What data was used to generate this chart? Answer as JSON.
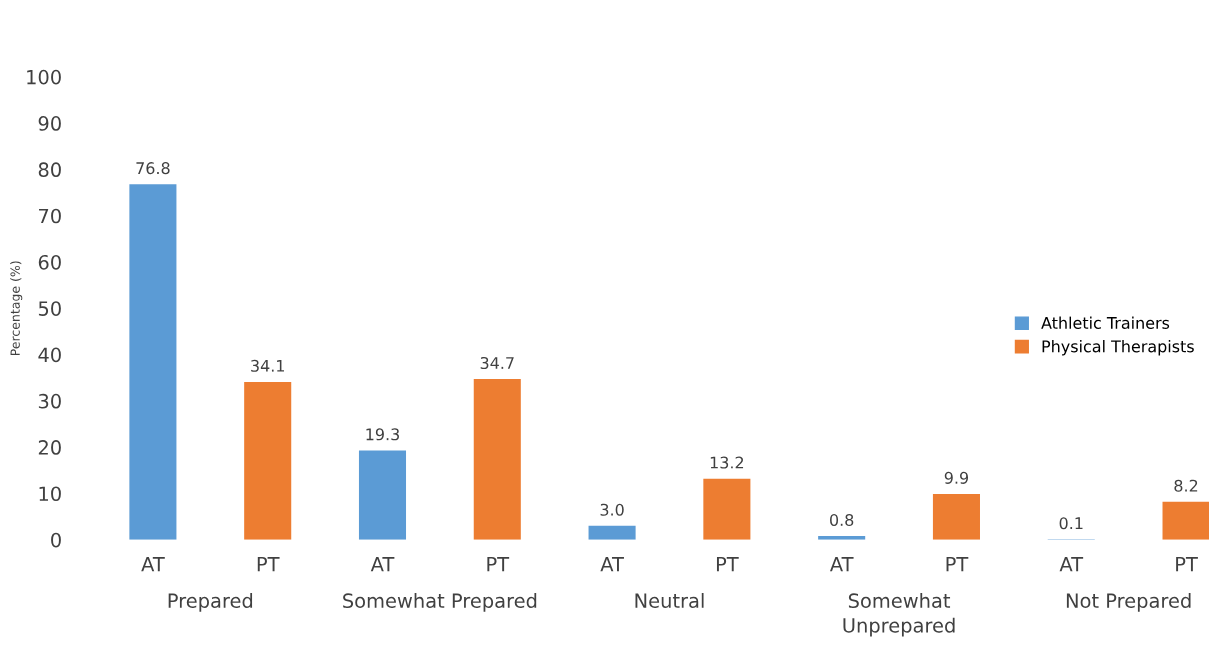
{
  "chart_data": {
    "type": "bar",
    "categories": [
      "AT",
      "PT",
      "AT",
      "PT",
      "AT",
      "PT",
      "AT",
      "PT",
      "AT",
      "PT"
    ],
    "series": [
      {
        "name": "Athletic Trainers",
        "color": "#5b9bd5",
        "values": [
          76.8,
          null,
          19.3,
          null,
          3.0,
          null,
          0.8,
          null,
          0.1,
          null
        ],
        "value_labels": [
          "76.8",
          null,
          "19.3",
          null,
          "3.0",
          null,
          "0.8",
          null,
          "0.1",
          null
        ]
      },
      {
        "name": "Physical Therapists",
        "color": "#ed7d31",
        "values": [
          null,
          34.1,
          null,
          34.7,
          null,
          13.2,
          null,
          9.9,
          null,
          8.2
        ],
        "value_labels": [
          null,
          "34.1",
          null,
          "34.7",
          null,
          "13.2",
          null,
          "9.9",
          null,
          "8.2"
        ]
      }
    ],
    "ylabel": "Percentage (%)",
    "annotations": [
      "Prepared",
      "Somewhat Prepared",
      "Neutral",
      "Somewhat\nUnprepared",
      "Not Prepared"
    ],
    "ylim": [
      0,
      100
    ],
    "yticks": [
      0,
      10,
      20,
      30,
      40,
      50,
      60,
      70,
      80,
      90,
      100
    ],
    "grid": false,
    "legend": "right"
  }
}
